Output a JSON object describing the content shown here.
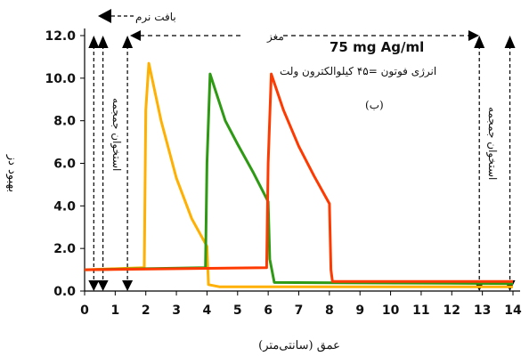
{
  "chart_data": {
    "type": "line",
    "title": "",
    "xlabel": "عمق (سانتی‌متر)",
    "ylabel": "بهبود دز",
    "xlim": [
      0,
      14
    ],
    "ylim": [
      0,
      12
    ],
    "x_ticks": [
      "0",
      "1",
      "2",
      "3",
      "4",
      "5",
      "6",
      "7",
      "8",
      "9",
      "10",
      "11",
      "12",
      "13",
      "14"
    ],
    "y_ticks": [
      "0.0",
      "2.0",
      "4.0",
      "6.0",
      "8.0",
      "10.0",
      "12.0"
    ],
    "grid": false,
    "series": [
      {
        "color": "#ffb000",
        "points": [
          [
            0,
            1.0
          ],
          [
            1.95,
            1.1
          ],
          [
            2.0,
            8.5
          ],
          [
            2.1,
            10.7
          ],
          [
            2.5,
            8.0
          ],
          [
            3.0,
            5.3
          ],
          [
            3.5,
            3.4
          ],
          [
            4.0,
            2.1
          ],
          [
            4.05,
            0.3
          ],
          [
            4.4,
            0.2
          ],
          [
            14,
            0.2
          ]
        ]
      },
      {
        "color": "#2e9a14",
        "points": [
          [
            0,
            1.0
          ],
          [
            3.95,
            1.1
          ],
          [
            4.0,
            6.0
          ],
          [
            4.1,
            10.2
          ],
          [
            4.6,
            8.0
          ],
          [
            5.0,
            6.9
          ],
          [
            5.5,
            5.6
          ],
          [
            6.0,
            4.2
          ],
          [
            6.05,
            1.5
          ],
          [
            6.2,
            0.4
          ],
          [
            14,
            0.35
          ]
        ]
      },
      {
        "color": "#ff3a00",
        "points": [
          [
            0,
            1.0
          ],
          [
            5.95,
            1.1
          ],
          [
            6.0,
            6.0
          ],
          [
            6.1,
            10.2
          ],
          [
            6.5,
            8.5
          ],
          [
            7.0,
            6.8
          ],
          [
            7.5,
            5.4
          ],
          [
            8.0,
            4.1
          ],
          [
            8.05,
            1.0
          ],
          [
            8.1,
            0.45
          ],
          [
            14,
            0.45
          ]
        ]
      }
    ],
    "vertical_markers": [
      0.3,
      0.6,
      1.4,
      12.9,
      13.9
    ],
    "annotations": {
      "soft_tissue": "بافت نرم",
      "brain": "مغز",
      "skull_left": "استخوان جمجمه",
      "skull_right": "استخوان جمجمه",
      "concentration": "75 mg Ag/ml",
      "photon_energy": "انرژی فوتون =۴۵ کیلوالکترون ولت",
      "panel_label": "(ب)"
    }
  }
}
